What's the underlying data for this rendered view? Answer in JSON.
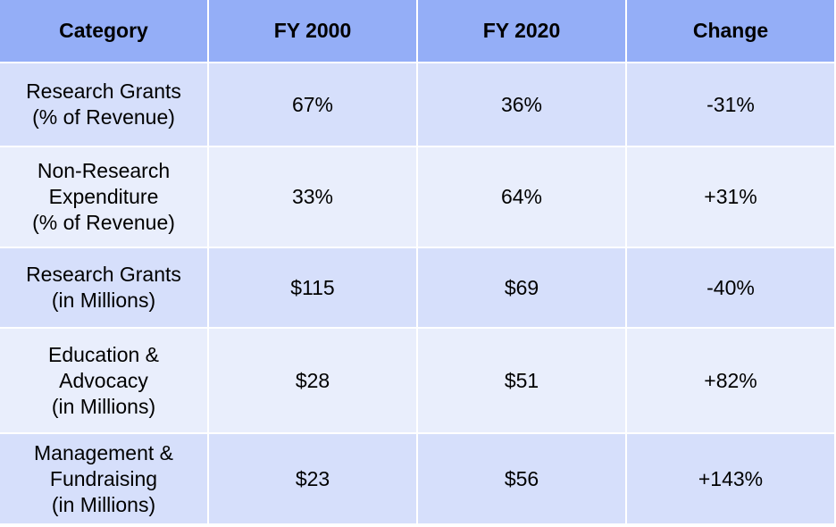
{
  "chart_data": {
    "type": "table",
    "columns": [
      "Category",
      "FY 2000",
      "FY 2020",
      "Change"
    ],
    "rows": [
      {
        "category": [
          "Research Grants",
          "(% of Revenue)"
        ],
        "fy2000": "67%",
        "fy2020": "36%",
        "change": "-31%"
      },
      {
        "category": [
          "Non-Research",
          "Expenditure",
          "(% of Revenue)"
        ],
        "fy2000": "33%",
        "fy2020": "64%",
        "change": "+31%"
      },
      {
        "category": [
          "Research Grants",
          "(in Millions)"
        ],
        "fy2000": "$115",
        "fy2020": "$69",
        "change": "-40%"
      },
      {
        "category": [
          "Education &",
          "Advocacy",
          "(in Millions)"
        ],
        "fy2000": "$28",
        "fy2020": "$51",
        "change": "+82%"
      },
      {
        "category": [
          "Management &",
          "Fundraising",
          "(in Millions)"
        ],
        "fy2000": "$23",
        "fy2020": "$56",
        "change": "+143%"
      }
    ]
  },
  "colors": {
    "header_bg": "#94aef7",
    "row_bg_odd": "#d6dffb",
    "row_bg_even": "#e9eefc",
    "gridline": "#ffffff"
  }
}
